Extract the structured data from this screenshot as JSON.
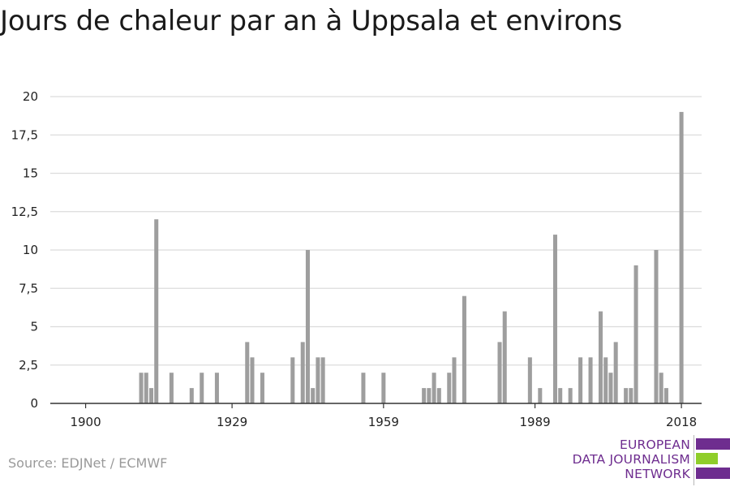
{
  "title": "Jours de chaleur par an à Uppsala et environs",
  "source": "Source: EDJNet / ECMWF",
  "logo": {
    "line1": "EUROPEAN",
    "line2": "DATA JOURNALISM",
    "line3": "NETWORK"
  },
  "colors": {
    "bar": "#9e9e9e",
    "grid": "#dcdcdc",
    "axis": "#333333",
    "logo_purple": "#6e2d8f",
    "logo_green": "#8fce2a"
  },
  "chart_data": {
    "type": "bar",
    "title": "Jours de chaleur par an à Uppsala et environs",
    "xlabel": "",
    "ylabel": "",
    "ylim": [
      0,
      20
    ],
    "yticks": [
      0,
      2.5,
      5,
      7.5,
      10,
      12.5,
      15,
      17.5,
      20
    ],
    "ytick_labels": [
      "0",
      "2,5",
      "5",
      "7,5",
      "10",
      "12,5",
      "15",
      "17,5",
      "20"
    ],
    "xticks": [
      1900,
      1929,
      1959,
      1989,
      2018
    ],
    "xlim": [
      1893,
      2022
    ],
    "grid": true,
    "x": [
      1911,
      1912,
      1913,
      1914,
      1917,
      1921,
      1923,
      1926,
      1932,
      1933,
      1935,
      1941,
      1943,
      1944,
      1945,
      1946,
      1947,
      1948,
      1955,
      1959,
      1967,
      1968,
      1969,
      1970,
      1972,
      1973,
      1975,
      1982,
      1983,
      1988,
      1990,
      1993,
      1994,
      1996,
      1998,
      2000,
      2002,
      2003,
      2004,
      2005,
      2007,
      2008,
      2009,
      2013,
      2014,
      2015,
      2018
    ],
    "values": [
      2,
      2,
      1,
      12,
      2,
      1,
      2,
      2,
      4,
      3,
      2,
      3,
      4,
      10,
      1,
      3,
      3,
      0,
      2,
      2,
      1,
      1,
      2,
      1,
      2,
      3,
      7,
      4,
      6,
      3,
      1,
      11,
      1,
      1,
      3,
      3,
      6,
      3,
      2,
      4,
      1,
      1,
      9,
      10,
      2,
      1,
      19
    ]
  }
}
